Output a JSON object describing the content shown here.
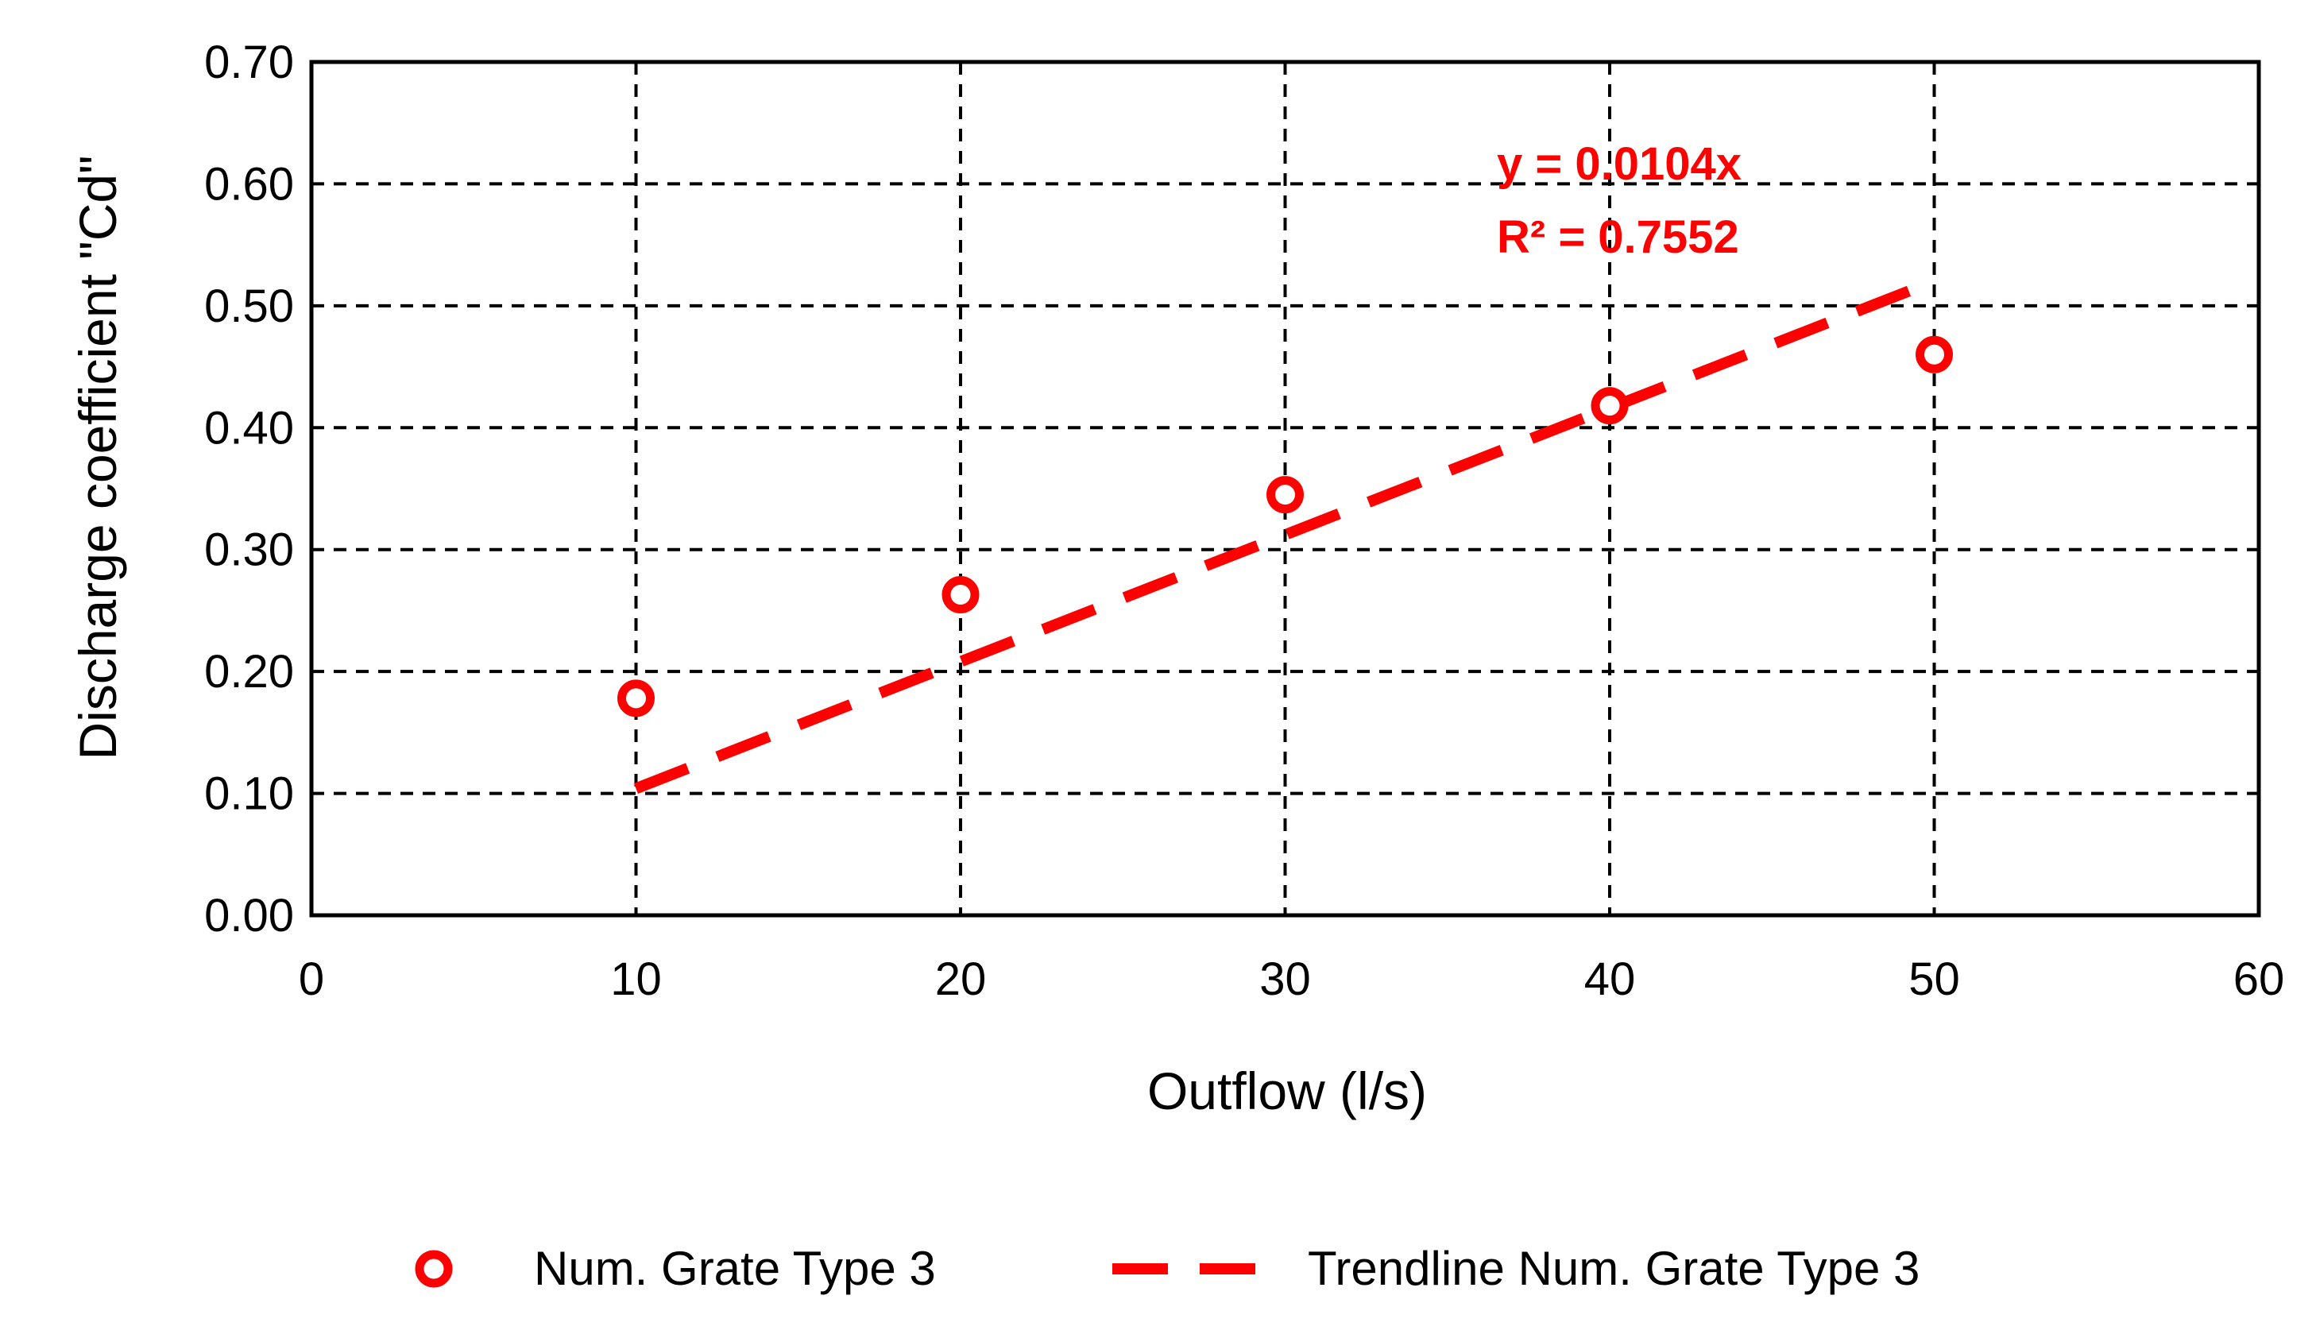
{
  "chart_data": {
    "type": "scatter",
    "title": "",
    "xlabel": "Outflow (l/s)",
    "ylabel": "Discharge coefficient \"Cd\"",
    "xlim": [
      0,
      60
    ],
    "ylim": [
      0,
      0.7
    ],
    "x_ticks": [
      "0",
      "10",
      "20",
      "30",
      "40",
      "50",
      "60"
    ],
    "y_ticks": [
      "0.00",
      "0.10",
      "0.20",
      "0.30",
      "0.40",
      "0.50",
      "0.60",
      "0.70"
    ],
    "grid": true,
    "legend_position": "bottom",
    "series": [
      {
        "name": "Num. Grate Type 3",
        "type": "scatter",
        "x": [
          10,
          20,
          30,
          40,
          50
        ],
        "y": [
          0.178,
          0.263,
          0.345,
          0.418,
          0.46
        ]
      },
      {
        "name": "Trendline Num. Grate Type 3",
        "type": "line",
        "x": [
          10,
          49.5
        ],
        "y": [
          0.104,
          0.515
        ]
      }
    ],
    "annotations": [
      "y = 0.0104x",
      "R² = 0.7552"
    ],
    "colors": {
      "series": "#ff0000",
      "grid": "#000000",
      "axis": "#000000"
    }
  }
}
